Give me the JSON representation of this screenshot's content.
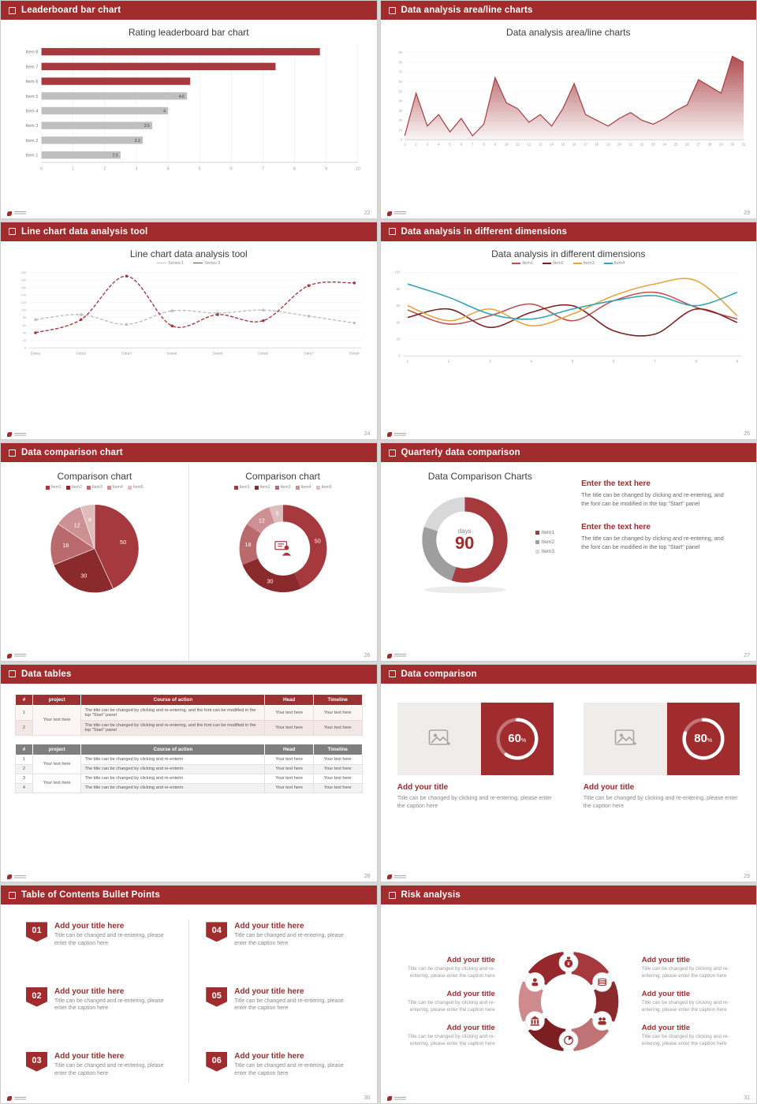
{
  "theme": {
    "accent": "#A02C2E",
    "chart_red": "#A6393D",
    "gray": "#BFBFBF",
    "page_bg": "#D9D7D5"
  },
  "slides": [
    {
      "header": "Leaderboard bar chart",
      "page": "22",
      "title": "Rating leaderboard bar chart"
    },
    {
      "header": "Data analysis area/line charts",
      "page": "23",
      "title": "Data analysis area/line charts"
    },
    {
      "header": "Line chart data analysis tool",
      "page": "24",
      "title": "Line chart data analysis tool",
      "legend": [
        "Series 1",
        "Series 2"
      ]
    },
    {
      "header": "Data analysis in different dimensions",
      "page": "25",
      "title": "Data analysis in different dimensions",
      "legend": [
        "Item1",
        "Item2",
        "Item3",
        "Item4"
      ]
    },
    {
      "header": "Data comparison chart",
      "page": "26",
      "left_title": "Comparison chart",
      "right_title": "Comparison chart",
      "legend": [
        "Item1",
        "Item2",
        "Item3",
        "Item4",
        "Item5"
      ]
    },
    {
      "header": "Quarterly data comparison",
      "page": "27",
      "title": "Data Comparison Charts",
      "center_label": "days",
      "center_value": "90",
      "legend": [
        "Item1",
        "Item2",
        "Item3"
      ],
      "blocks": [
        {
          "heading": "Enter the text here",
          "body": "The title can be changed by clicking and re-entering, and the font can be modified in the top \"Start\" panel"
        },
        {
          "heading": "Enter the text here",
          "body": "The title can be changed by clicking and re-entering, and the font can be modified in the top \"Start\" panel"
        }
      ]
    },
    {
      "header": "Data tables",
      "page": "28",
      "columns": [
        "#",
        "project",
        "Course of action",
        "Head",
        "Timeline"
      ],
      "cell": "Your text here",
      "t1_course": "The title can be changed by clicking and re-entering, and the font can be modified in the top \"Start\" panel",
      "t2_course": "The title can be changed by clicking and re-enterin",
      "t1_nums": [
        "1",
        "2"
      ],
      "t2_nums": [
        "1",
        "2",
        "3",
        "4"
      ]
    },
    {
      "header": "Data comparison",
      "page": "29",
      "cards": [
        {
          "pct_label": "60",
          "pct_sign": "%",
          "title": "Add your title",
          "caption": "Title can be changed by clicking and re-entering, please enter the caption here"
        },
        {
          "pct_label": "80",
          "pct_sign": "%",
          "title": "Add your title",
          "caption": "Title can be changed by clicking and re-entering, please enter the caption here"
        }
      ]
    },
    {
      "header": "Table of Contents Bullet Points",
      "page": "30",
      "items": [
        {
          "num": "01",
          "title": "Add your title here",
          "caption": "Title can be changed and re-entering, please enter the caption here"
        },
        {
          "num": "02",
          "title": "Add your title here",
          "caption": "Title can be changed and re-entering, please enter the caption here"
        },
        {
          "num": "03",
          "title": "Add your title here",
          "caption": "Title can be changed and re-entering, please enter the caption here"
        },
        {
          "num": "04",
          "title": "Add your title here",
          "caption": "Title can be changed and re-entering, please enter the caption here"
        },
        {
          "num": "05",
          "title": "Add your title here",
          "caption": "Title can be changed and re-entering, please enter the caption here"
        },
        {
          "num": "06",
          "title": "Add your title here",
          "caption": "Title can be changed and re-entering, please enter the caption here"
        }
      ]
    },
    {
      "header": "Risk analysis",
      "page": "31",
      "blocks": [
        {
          "title": "Add your title",
          "caption": "Title can be changed by clicking and re-entering, please enter the caption here"
        },
        {
          "title": "Add your title",
          "caption": "Title can be changed by clicking and re-entering, please enter the caption here"
        },
        {
          "title": "Add your title",
          "caption": "Title can be changed by clicking and re-entering, please enter the caption here"
        },
        {
          "title": "Add your title",
          "caption": "Title can be changed by clicking and re-entering, please enter the caption here"
        },
        {
          "title": "Add your title",
          "caption": "Title can be changed by clicking and re-entering, please enter the caption here"
        },
        {
          "title": "Add your title",
          "caption": "Title can be changed by clicking and re-entering, please enter the caption here"
        }
      ]
    }
  ],
  "chart_data": [
    {
      "key": "leaderboard",
      "type": "bar",
      "orientation": "horizontal",
      "title": "Rating leaderboard bar chart",
      "categories": [
        "Item 1",
        "Item 2",
        "Item 3",
        "Item 4",
        "Item 5",
        "Item 6",
        "Item 7",
        "Item 8"
      ],
      "values": [
        2.5,
        3.2,
        3.5,
        4,
        4.6,
        4.7,
        7.4,
        8.8
      ],
      "value_labels": [
        "2.5",
        "3.2",
        "3.5",
        "4",
        "4.6",
        "",
        "",
        ""
      ],
      "bar_colors": [
        "#BFBFBF",
        "#BFBFBF",
        "#BFBFBF",
        "#BFBFBF",
        "#BFBFBF",
        "#A6393D",
        "#A6393D",
        "#A6393D"
      ],
      "xlim": [
        0,
        10
      ],
      "xticks": [
        0,
        1,
        2,
        3,
        4,
        5,
        6,
        7,
        8,
        9,
        10
      ],
      "grid": true
    },
    {
      "key": "area",
      "type": "area",
      "title": "Data analysis area/line charts",
      "color": "#A6393D",
      "x": [
        1,
        2,
        3,
        4,
        5,
        6,
        7,
        8,
        9,
        10,
        11,
        12,
        13,
        14,
        15,
        16,
        17,
        18,
        19,
        20,
        21,
        22,
        23,
        24,
        25,
        26,
        27,
        28,
        29,
        30,
        31
      ],
      "values": [
        4,
        48,
        14,
        26,
        8,
        22,
        4,
        16,
        64,
        38,
        32,
        18,
        26,
        14,
        32,
        58,
        26,
        20,
        14,
        22,
        28,
        20,
        16,
        22,
        30,
        36,
        62,
        55,
        48,
        86,
        80
      ],
      "ylim": [
        0,
        90
      ],
      "ytick_step": 10
    },
    {
      "key": "line",
      "type": "line",
      "title": "Line chart data analysis tool",
      "categories": [
        "Data1",
        "Data2",
        "Data3",
        "Data4",
        "Data5",
        "Data6",
        "Data7",
        "Data8"
      ],
      "series": [
        {
          "name": "Series 1",
          "color": "#BFBFBF",
          "values": [
            75,
            88,
            62,
            98,
            92,
            100,
            84,
            66
          ]
        },
        {
          "name": "Series 2",
          "color": "#A6393D",
          "values": [
            40,
            75,
            190,
            58,
            88,
            72,
            165,
            172
          ]
        }
      ],
      "ylim": [
        0,
        200
      ],
      "ytick_step": 20
    },
    {
      "key": "dims",
      "type": "line",
      "title": "Data analysis in different dimensions",
      "x": [
        1,
        2,
        3,
        4,
        5,
        6,
        7,
        8,
        9
      ],
      "series": [
        {
          "name": "Item1",
          "color": "#C0504D",
          "values": [
            55,
            38,
            48,
            62,
            42,
            66,
            76,
            58,
            44
          ]
        },
        {
          "name": "Item2",
          "color": "#7B1F1F",
          "values": [
            46,
            56,
            34,
            52,
            60,
            30,
            26,
            56,
            40
          ]
        },
        {
          "name": "Item3",
          "color": "#E8A33D",
          "values": [
            60,
            42,
            56,
            36,
            50,
            72,
            86,
            90,
            48
          ]
        },
        {
          "name": "Item4",
          "color": "#31A3B5",
          "values": [
            86,
            70,
            50,
            44,
            56,
            66,
            72,
            60,
            76
          ]
        }
      ],
      "ylim": [
        0,
        100
      ],
      "ytick_step": 20
    },
    {
      "key": "pie",
      "type": "pie",
      "title": "Comparison chart",
      "labels": [
        "Item1",
        "Item2",
        "Item3",
        "Item4",
        "Item5"
      ],
      "values": [
        50,
        30,
        18,
        12,
        6
      ],
      "colors": [
        "#A6393D",
        "#8A2A2D",
        "#BA6A6D",
        "#CD9193",
        "#E0BCBD"
      ]
    },
    {
      "key": "quarter",
      "type": "donut",
      "title": "Data Comparison Charts",
      "labels": [
        "Item1",
        "Item2",
        "Item3"
      ],
      "values": [
        55,
        25,
        20
      ],
      "colors": [
        "#A6393D",
        "#9E9E9E",
        "#D8D8D8"
      ],
      "center_label": "days",
      "center_value": "90"
    },
    {
      "key": "rings",
      "type": "progress",
      "values": [
        60,
        80
      ],
      "ring_color": "#FFFFFF"
    },
    {
      "key": "pinwheel",
      "type": "diagram",
      "colors": [
        "#A6393D",
        "#8A2A2D",
        "#C07375",
        "#7B1F22",
        "#CE8A8C",
        "#96282B"
      ],
      "icons": [
        "money-bag",
        "coins",
        "users",
        "pie",
        "bank",
        "user"
      ],
      "icon_color": "#A02C2E"
    }
  ]
}
